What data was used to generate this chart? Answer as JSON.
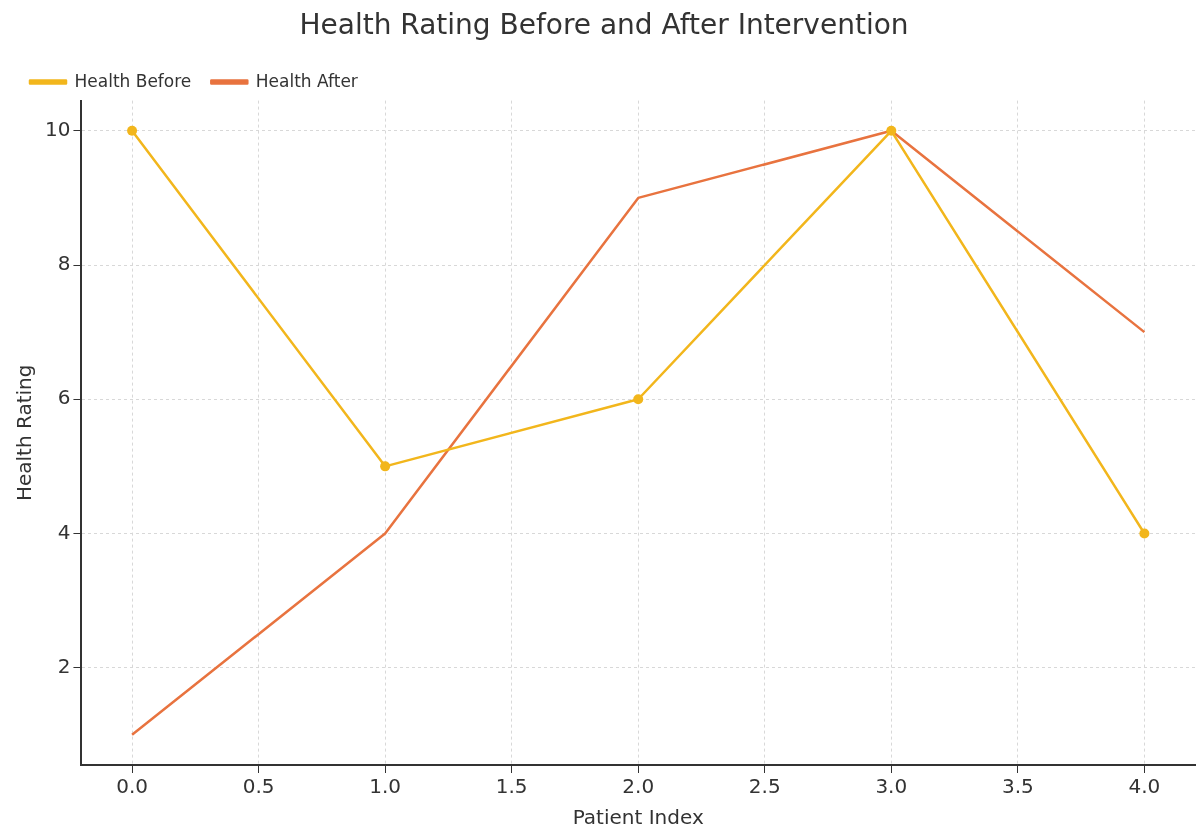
{
  "chart_data": {
    "type": "line",
    "title": "Health Rating Before and After Intervention",
    "xlabel": "Patient Index",
    "ylabel": "Health Rating",
    "x": [
      0,
      1,
      2,
      3,
      4
    ],
    "series": [
      {
        "name": "Health Before",
        "color": "#f2b61c",
        "marker": "circle",
        "values": [
          10,
          5,
          6,
          10,
          4
        ]
      },
      {
        "name": "Health After",
        "color": "#e8733f",
        "marker": "none",
        "values": [
          1,
          4,
          9,
          10,
          7
        ]
      }
    ],
    "xlim": [
      -0.2,
      4.2
    ],
    "xticks": [
      {
        "value": 0,
        "label": "0.0"
      },
      {
        "value": 0.5,
        "label": "0.5"
      },
      {
        "value": 1,
        "label": "1.0"
      },
      {
        "value": 1.5,
        "label": "1.5"
      },
      {
        "value": 2,
        "label": "2.0"
      },
      {
        "value": 2.5,
        "label": "2.5"
      },
      {
        "value": 3,
        "label": "3.0"
      },
      {
        "value": 3.5,
        "label": "3.5"
      },
      {
        "value": 4,
        "label": "4.0"
      }
    ],
    "ylim": [
      0.55,
      10.45
    ],
    "yticks": [
      2,
      4,
      6,
      8,
      10
    ],
    "grid": true,
    "legend": "top left",
    "line_style": "solid"
  }
}
